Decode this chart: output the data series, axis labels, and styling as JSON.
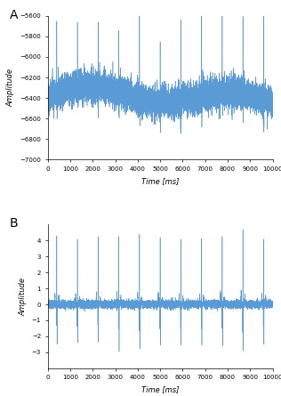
{
  "title_A": "A",
  "title_B": "B",
  "line_color": "#5b9bd5",
  "line_width": 0.4,
  "xlim": [
    0,
    10000
  ],
  "xticks": [
    0,
    1000,
    2000,
    3000,
    4000,
    5000,
    6000,
    7000,
    8000,
    9000,
    10000
  ],
  "xlabel": "Time [ms]",
  "ylabel_A": "Amplitude",
  "ylabel_B": "Amplitude",
  "ylim_A": [
    -7000,
    -5600
  ],
  "yticks_A": [
    -7000,
    -6800,
    -6600,
    -6400,
    -6200,
    -6000,
    -5800,
    -5600
  ],
  "ylim_B": [
    -4,
    5
  ],
  "yticks_B": [
    -3,
    -2,
    -1,
    0,
    1,
    2,
    3,
    4
  ],
  "seed": 42,
  "n_samples": 10000,
  "fs": 1000,
  "n_beats": 11,
  "background_color": "#ffffff",
  "tick_labelsize": 5,
  "axis_labelsize": 6,
  "panel_labelsize": 10
}
